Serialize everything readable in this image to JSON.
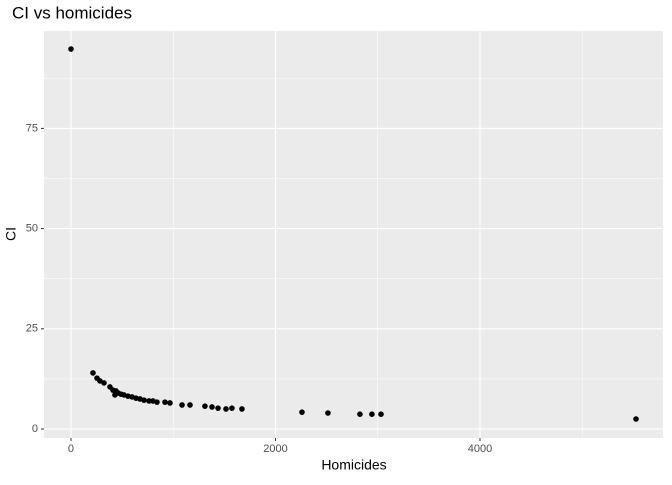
{
  "chart_data": {
    "type": "scatter",
    "title": "CI vs homicides",
    "x_label": "Homicides",
    "y_label": "CI",
    "x": [
      0,
      215,
      254,
      283,
      323,
      381,
      411,
      430,
      440,
      460,
      489,
      518,
      557,
      597,
      636,
      675,
      714,
      763,
      802,
      841,
      919,
      968,
      1086,
      1164,
      1310,
      1379,
      1438,
      1516,
      1574,
      1672,
      2259,
      2513,
      2826,
      2943,
      3032,
      5526
    ],
    "y": [
      94.8,
      14.0,
      12.7,
      12.0,
      11.5,
      10.5,
      9.7,
      8.5,
      9.5,
      9.0,
      8.7,
      8.5,
      8.2,
      8.0,
      7.7,
      7.5,
      7.2,
      7.0,
      7.0,
      6.7,
      6.7,
      6.5,
      6.0,
      6.0,
      5.7,
      5.5,
      5.2,
      5.0,
      5.2,
      5.0,
      4.2,
      4.0,
      3.7,
      3.7,
      3.7,
      2.5
    ],
    "color": "#000000",
    "xlim": [
      -264,
      5790
    ],
    "ylim": [
      -2.24,
      99.3
    ],
    "xticks": [
      0,
      2000,
      4000
    ],
    "yticks": [
      0,
      25,
      50,
      75
    ],
    "grid": true
  }
}
